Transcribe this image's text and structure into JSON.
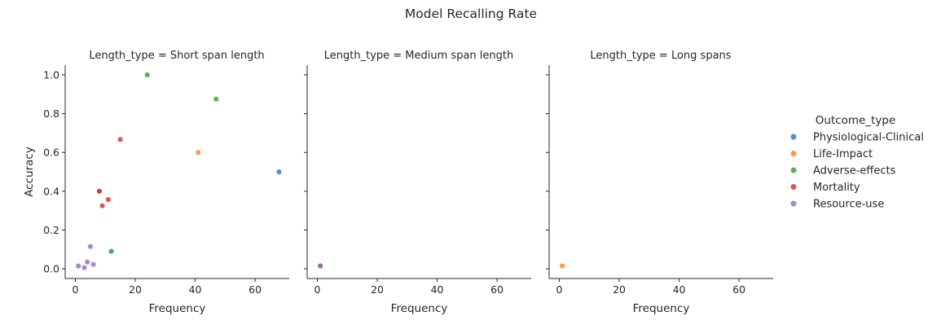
{
  "chart_data": {
    "type": "scatter",
    "title": "Model Recalling Rate",
    "xlabel": "Frequency",
    "ylabel": "Accuracy",
    "xlim": [
      -3.4,
      71.4
    ],
    "ylim": [
      -0.05,
      1.05
    ],
    "xticks": [
      "0",
      "20",
      "40",
      "60"
    ],
    "xtick_values": [
      0,
      20,
      40,
      60
    ],
    "yticks": [
      "0.0",
      "0.2",
      "0.4",
      "0.6",
      "0.8",
      "1.0"
    ],
    "ytick_values": [
      0.0,
      0.2,
      0.4,
      0.6,
      0.8,
      1.0
    ],
    "grid": false,
    "legend": {
      "title": "Outcome_type",
      "position": "right",
      "entries": [
        {
          "name": "Physiological-Clinical",
          "color": "#1f77b4"
        },
        {
          "name": "Life-Impact",
          "color": "#ff7f0e"
        },
        {
          "name": "Adverse-effects",
          "color": "#2ca02c"
        },
        {
          "name": "Mortality",
          "color": "#d62728"
        },
        {
          "name": "Resource-use",
          "color": "#9467bd"
        }
      ]
    },
    "facets": [
      {
        "title": "Length_type = Short span length",
        "points": [
          {
            "series": "Physiological-Clinical",
            "x": 68,
            "y": 0.5
          },
          {
            "series": "Physiological-Clinical",
            "x": 12,
            "y": 0.09
          },
          {
            "series": "Life-Impact",
            "x": 41,
            "y": 0.6
          },
          {
            "series": "Adverse-effects",
            "x": 24,
            "y": 1.0
          },
          {
            "series": "Adverse-effects",
            "x": 47,
            "y": 0.875
          },
          {
            "series": "Adverse-effects",
            "x": 8,
            "y": 0.4
          },
          {
            "series": "Mortality",
            "x": 15,
            "y": 0.667
          },
          {
            "series": "Mortality",
            "x": 11,
            "y": 0.357
          },
          {
            "series": "Mortality",
            "x": 9,
            "y": 0.325
          },
          {
            "series": "Mortality",
            "x": 8,
            "y": 0.4
          },
          {
            "series": "Resource-use",
            "x": 5,
            "y": 0.115
          },
          {
            "series": "Resource-use",
            "x": 4,
            "y": 0.035
          },
          {
            "series": "Resource-use",
            "x": 6,
            "y": 0.023
          },
          {
            "series": "Resource-use",
            "x": 1,
            "y": 0.015
          },
          {
            "series": "Resource-use",
            "x": 3,
            "y": 0.006
          }
        ]
      },
      {
        "title": "Length_type = Medium span length",
        "points": [
          {
            "series": "Mortality",
            "x": 1,
            "y": 0.015
          },
          {
            "series": "Resource-use",
            "x": 1,
            "y": 0.015
          }
        ]
      },
      {
        "title": "Length_type = Long spans",
        "points": [
          {
            "series": "Life-Impact",
            "x": 1,
            "y": 0.015
          }
        ]
      }
    ]
  }
}
